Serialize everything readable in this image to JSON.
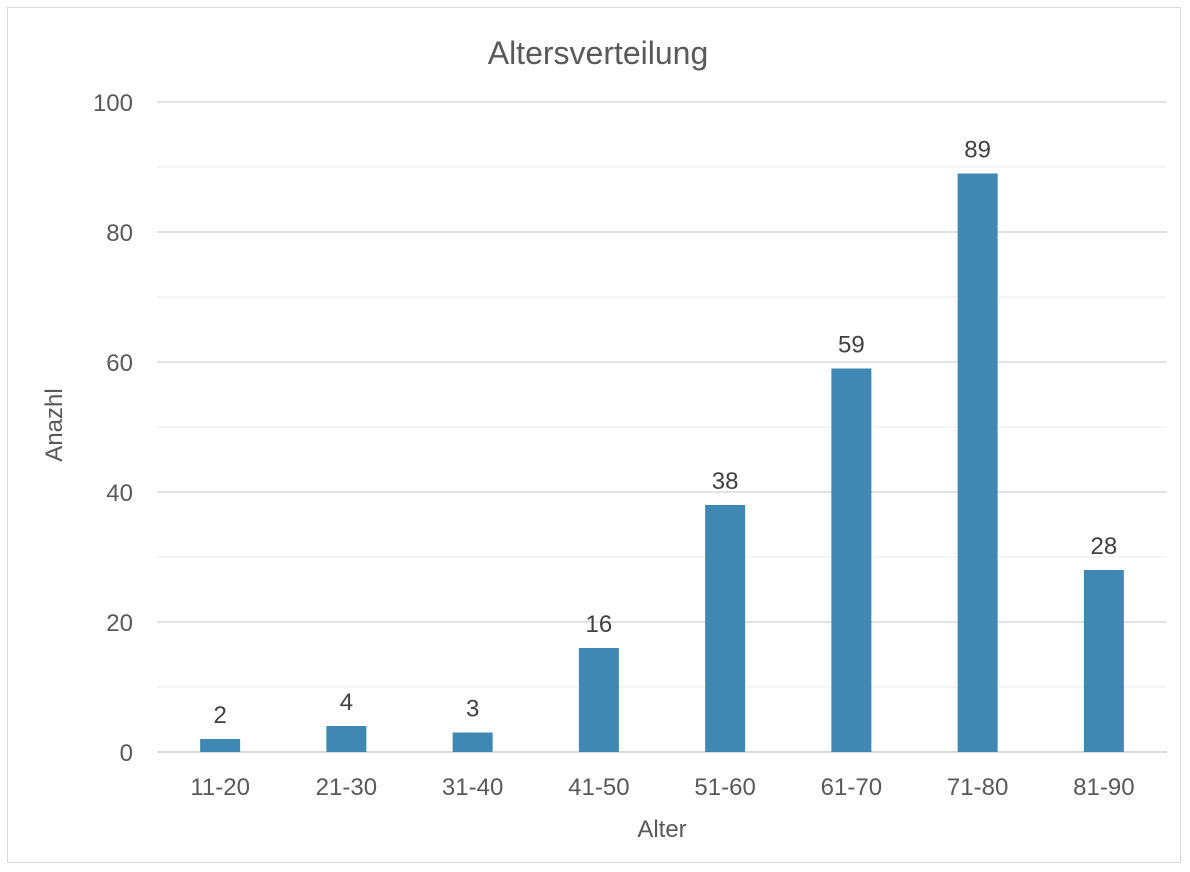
{
  "chart_data": {
    "type": "bar",
    "title": "Altersverteilung",
    "xlabel": "Alter",
    "ylabel": "Anazhl",
    "categories": [
      "11-20",
      "21-30",
      "31-40",
      "41-50",
      "51-60",
      "61-70",
      "71-80",
      "81-90"
    ],
    "values": [
      2,
      4,
      3,
      16,
      38,
      59,
      89,
      28
    ],
    "ylim": [
      0,
      100
    ],
    "yticks": [
      0,
      20,
      40,
      60,
      80,
      100
    ],
    "grid": true,
    "bar_color": "#3f88b3",
    "data_labels": true
  }
}
